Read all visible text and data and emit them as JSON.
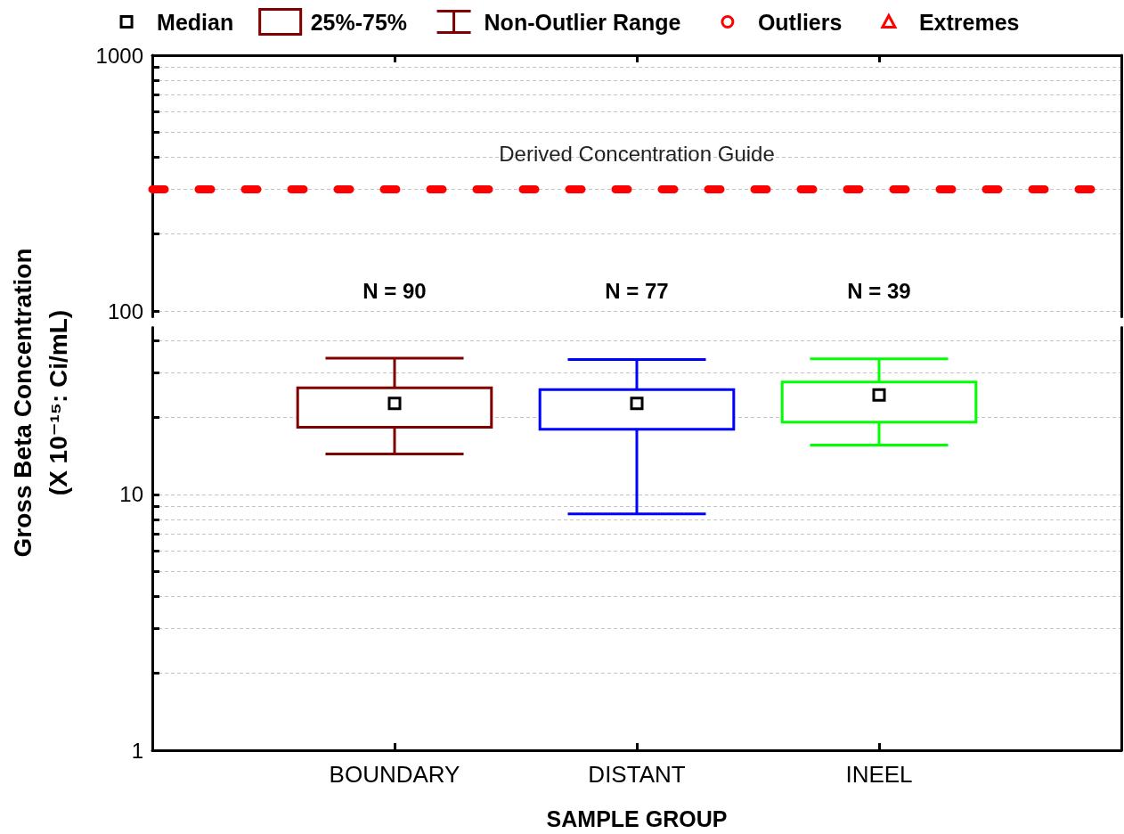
{
  "chart_data": [
    {
      "type": "box",
      "categories": [
        null,
        null,
        null
      ],
      "ylim": [
        95,
        1000
      ],
      "yticks": [
        100,
        {
          "value": 200,
          "label": null
        },
        {
          "value": 300,
          "label": null
        },
        {
          "value": 400,
          "label": null
        },
        {
          "value": 500,
          "label": null
        },
        {
          "value": 600,
          "label": null
        },
        {
          "value": 700,
          "label": null
        },
        {
          "value": 800,
          "label": null
        },
        {
          "value": 900,
          "label": null
        },
        1000
      ],
      "log": true,
      "grid": "y",
      "ref_lines": [
        {
          "axis": "y",
          "value": 300,
          "label": "Derived Concentration Guide",
          "color": "#ff0000",
          "line_style": "dashed"
        }
      ],
      "annotations": [
        "N = 90",
        "N = 77",
        "N = 39"
      ]
    },
    {
      "type": "box",
      "categories": [
        "BOUNDARY",
        "DISTANT",
        "INEEL"
      ],
      "xlabel": "SAMPLE GROUP",
      "ylabel": "Gross Beta Concentration\n(X 10⁻¹⁵: Ci/mL)",
      "ylim": [
        1,
        45
      ],
      "yticks": [
        1,
        {
          "value": 2,
          "label": null
        },
        {
          "value": 3,
          "label": null
        },
        {
          "value": 4,
          "label": null
        },
        {
          "value": 5,
          "label": null
        },
        {
          "value": 6,
          "label": null
        },
        {
          "value": 7,
          "label": null
        },
        {
          "value": 8,
          "label": null
        },
        {
          "value": 9,
          "label": null
        },
        10,
        {
          "value": 20,
          "label": null
        },
        {
          "value": 30,
          "label": null
        },
        {
          "value": 40,
          "label": null
        }
      ],
      "log": true,
      "grid": "y",
      "legend": "top",
      "series": [
        {
          "name": "Median",
          "type": "scatter",
          "marker": "square",
          "color": "#000000",
          "values": [
            22.7,
            22.7,
            24.5
          ]
        },
        {
          "name": "25%-75%",
          "type": "box",
          "color": "#800000",
          "colors": [
            "#800000",
            "#0000ff",
            "#00ff00"
          ],
          "boxes": [
            {
              "low": 14.4,
              "q1": 18.3,
              "q3": 26.1,
              "high": 34.1
            },
            {
              "low": 8.4,
              "q1": 18.0,
              "q3": 25.7,
              "high": 33.7
            },
            {
              "low": 15.6,
              "q1": 19.2,
              "q3": 27.5,
              "high": 33.9
            }
          ]
        },
        {
          "name": "Non-Outlier Range",
          "type": "box",
          "color": "#800000",
          "boxes": [
            null,
            null,
            null
          ]
        },
        {
          "name": "Outliers",
          "type": "scatter",
          "marker": "circle",
          "color": "#ff0000",
          "values": [
            null,
            null,
            null
          ]
        },
        {
          "name": "Extremes",
          "type": "scatter",
          "marker": "triangle",
          "color": "#ff0000",
          "values": [
            null,
            null,
            null
          ]
        }
      ]
    }
  ]
}
